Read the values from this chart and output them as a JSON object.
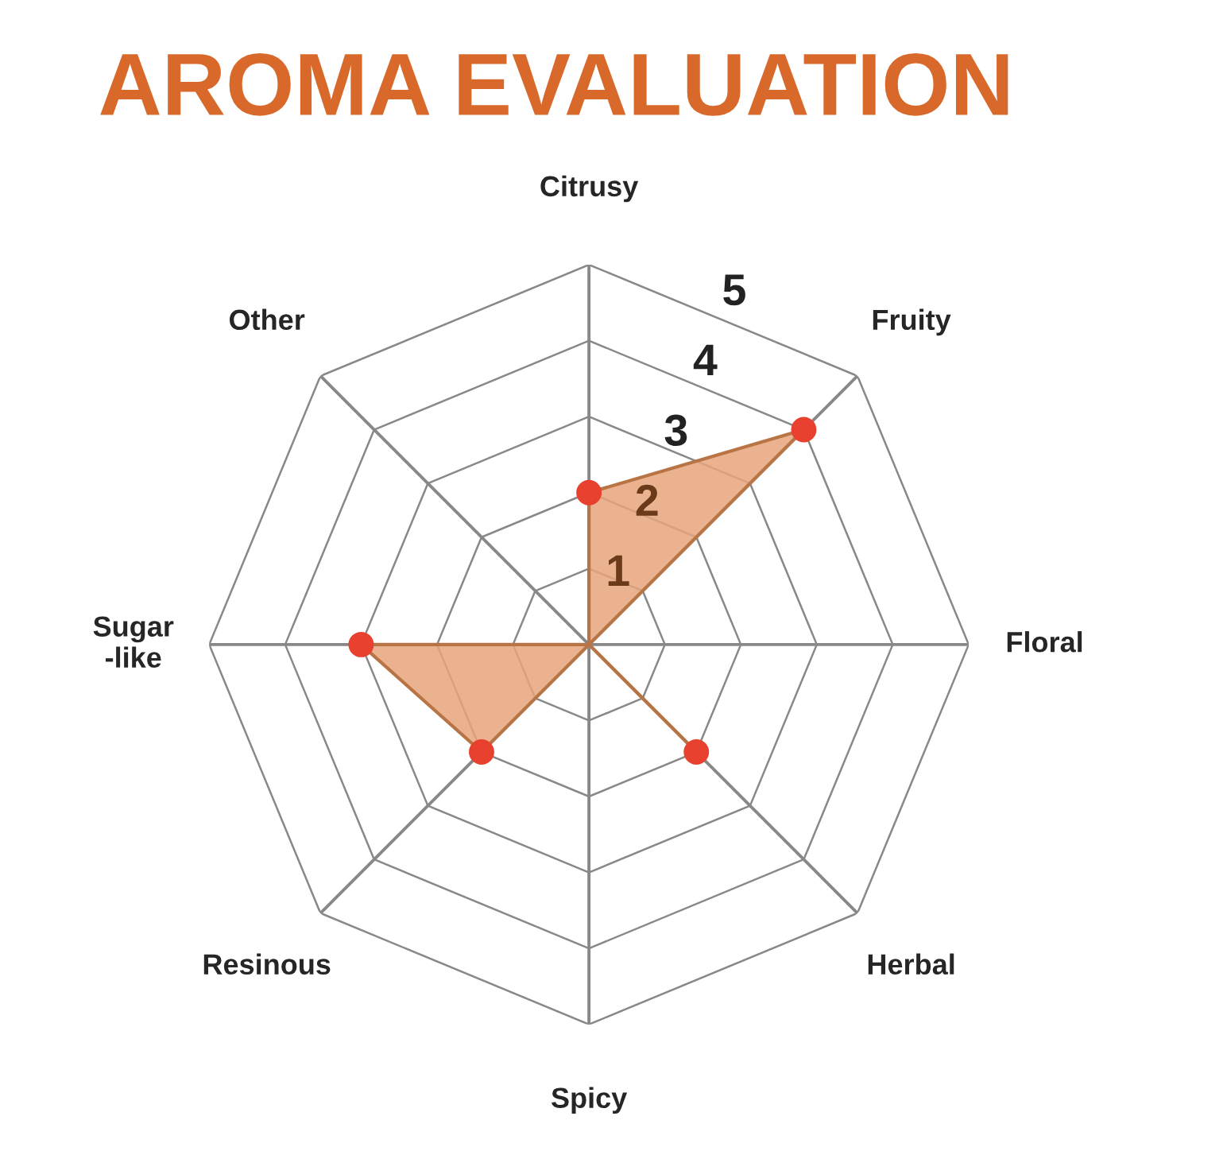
{
  "chart_data": {
    "type": "radar",
    "title": "AROMA EVALUATION",
    "categories": [
      "Citrusy",
      "Fruity",
      "Floral",
      "Herbal",
      "Spicy",
      "Resinous",
      "Sugar\n-like",
      "Other"
    ],
    "series": [
      {
        "color": "#e8a47c",
        "values": [
          2,
          4,
          0,
          2,
          0,
          2,
          3,
          0
        ]
      }
    ],
    "ylim": [
      0,
      5
    ],
    "yticks": [
      1,
      2,
      3,
      4,
      5
    ],
    "marker": "circle",
    "grid": true
  }
}
